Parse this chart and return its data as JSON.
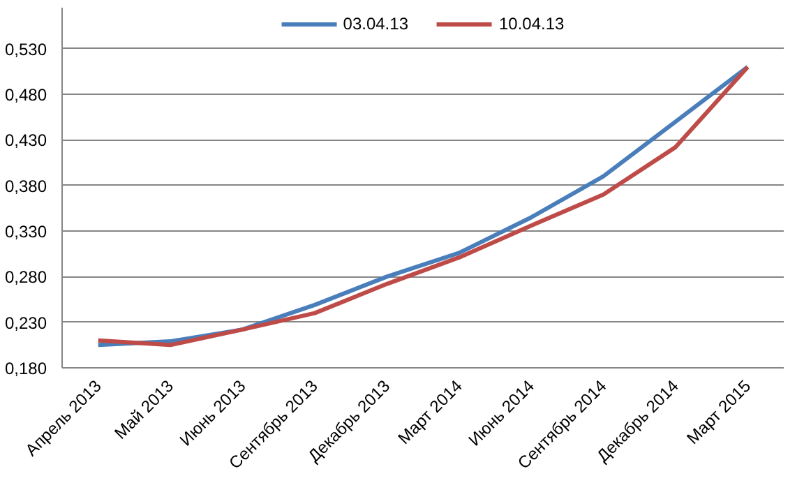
{
  "chart_data": {
    "type": "line",
    "categories": [
      "Апрель 2013",
      "Май 2013",
      "Июнь 2013",
      "Сентябрь 2013",
      "Декабрь 2013",
      "Март 2014",
      "Июнь 2014",
      "Сентябрь 2014",
      "Декабрь 2014",
      "Март 2015"
    ],
    "series": [
      {
        "name": "03.04.13",
        "color": "#4a7ebb",
        "values": [
          0.205,
          0.209,
          0.222,
          0.249,
          0.28,
          0.306,
          0.345,
          0.39,
          0.45,
          0.51
        ]
      },
      {
        "name": "10.04.13",
        "color": "#be4b48",
        "values": [
          0.21,
          0.205,
          0.222,
          0.24,
          0.272,
          0.301,
          0.336,
          0.37,
          0.422,
          0.51
        ]
      }
    ],
    "ylim": [
      0.18,
      0.575
    ],
    "yticks": [
      {
        "value": 0.18,
        "label": "0,180"
      },
      {
        "value": 0.23,
        "label": "0,230"
      },
      {
        "value": 0.28,
        "label": "0,280"
      },
      {
        "value": 0.33,
        "label": "0,330"
      },
      {
        "value": 0.38,
        "label": "0,380"
      },
      {
        "value": 0.43,
        "label": "0,430"
      },
      {
        "value": 0.48,
        "label": "0,480"
      },
      {
        "value": 0.53,
        "label": "0,530"
      }
    ],
    "grid": "y",
    "legend": "top",
    "marker": "none",
    "line_style": "solid"
  }
}
